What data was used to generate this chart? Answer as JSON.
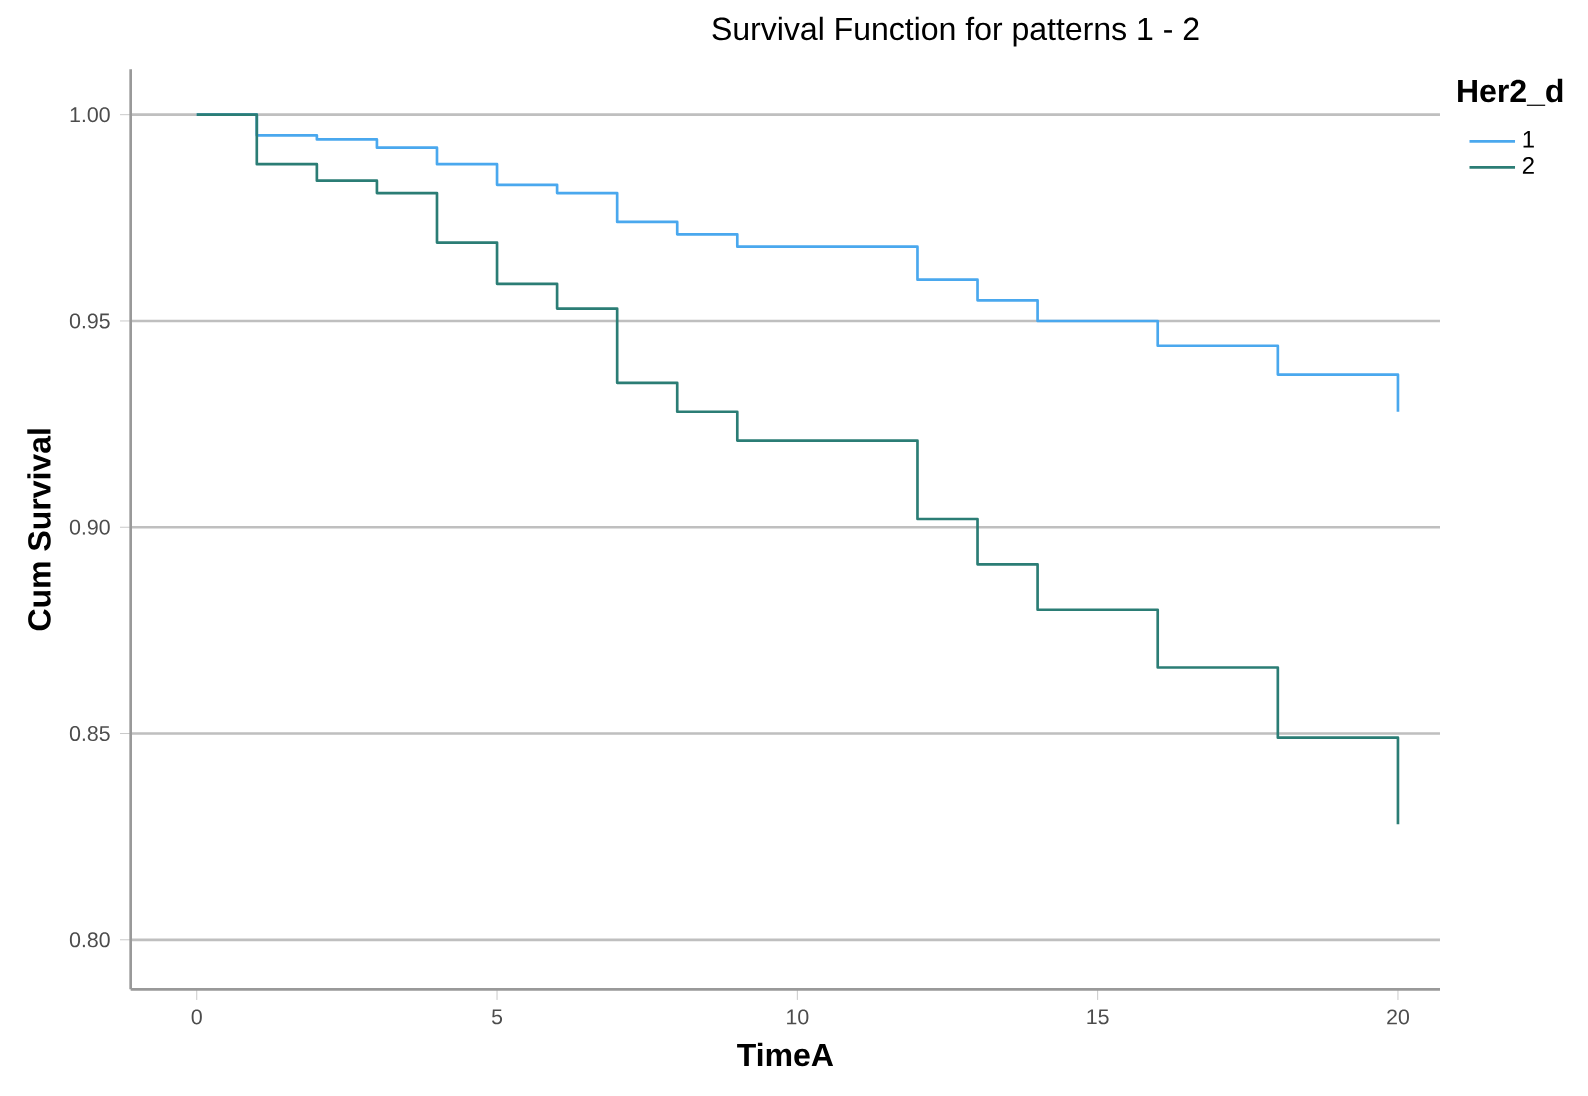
{
  "chart_data": {
    "type": "step",
    "title": "Survival Function for patterns 1 - 2",
    "xlabel": "TimeA",
    "ylabel": "Cum Survival",
    "legend_title": "Her2_d",
    "xlim": [
      -1.1,
      20.7
    ],
    "ylim": [
      0.788,
      1.011
    ],
    "xticks": [
      0,
      5,
      10,
      15,
      20
    ],
    "yticks": [
      {
        "value": 0.8,
        "label": "0.80"
      },
      {
        "value": 0.85,
        "label": "0.85"
      },
      {
        "value": 0.9,
        "label": "0.90"
      },
      {
        "value": 0.95,
        "label": "0.95"
      },
      {
        "value": 1.0,
        "label": "1.00"
      }
    ],
    "grid": "y",
    "legend": "top right",
    "marker": "none",
    "line_style": "solid",
    "series": [
      {
        "name": "1",
        "color": "#4aa8ee",
        "x": [
          0,
          1,
          2,
          3,
          4,
          5,
          6,
          7,
          8,
          9,
          12,
          13,
          14,
          16,
          18,
          20
        ],
        "values": [
          1.0,
          0.995,
          0.994,
          0.992,
          0.988,
          0.983,
          0.981,
          0.974,
          0.971,
          0.968,
          0.96,
          0.955,
          0.95,
          0.944,
          0.937,
          0.928
        ]
      },
      {
        "name": "2",
        "color": "#2b7d75",
        "x": [
          0,
          1,
          2,
          3,
          4,
          5,
          6,
          7,
          8,
          9,
          12,
          13,
          14,
          16,
          18,
          20
        ],
        "values": [
          1.0,
          0.988,
          0.984,
          0.981,
          0.969,
          0.959,
          0.953,
          0.935,
          0.928,
          0.921,
          0.902,
          0.891,
          0.88,
          0.866,
          0.849,
          0.828
        ]
      }
    ]
  }
}
